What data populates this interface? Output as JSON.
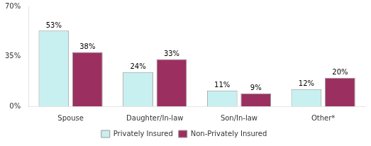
{
  "chart_data": {
    "type": "bar",
    "categories": [
      "Spouse",
      "Daughter/In-law",
      "Son/In-law",
      "Other*"
    ],
    "series": [
      {
        "name": "Privately Insured",
        "color": "#c8f0f0",
        "values": [
          53,
          24,
          11,
          12
        ],
        "value_labels": [
          "53%",
          "24%",
          "11%",
          "12%"
        ]
      },
      {
        "name": "Non-Privately Insured",
        "color": "#9b3060",
        "values": [
          38,
          33,
          9,
          20
        ],
        "value_labels": [
          "38%",
          "33%",
          "9%",
          "20%"
        ]
      }
    ],
    "ylim": [
      0,
      70
    ],
    "yticks": [
      {
        "value": 0,
        "label": "0%"
      },
      {
        "value": 35,
        "label": "35%"
      },
      {
        "value": 70,
        "label": "70%"
      }
    ],
    "grid": false,
    "legend": "bottom",
    "data_labels": true
  }
}
